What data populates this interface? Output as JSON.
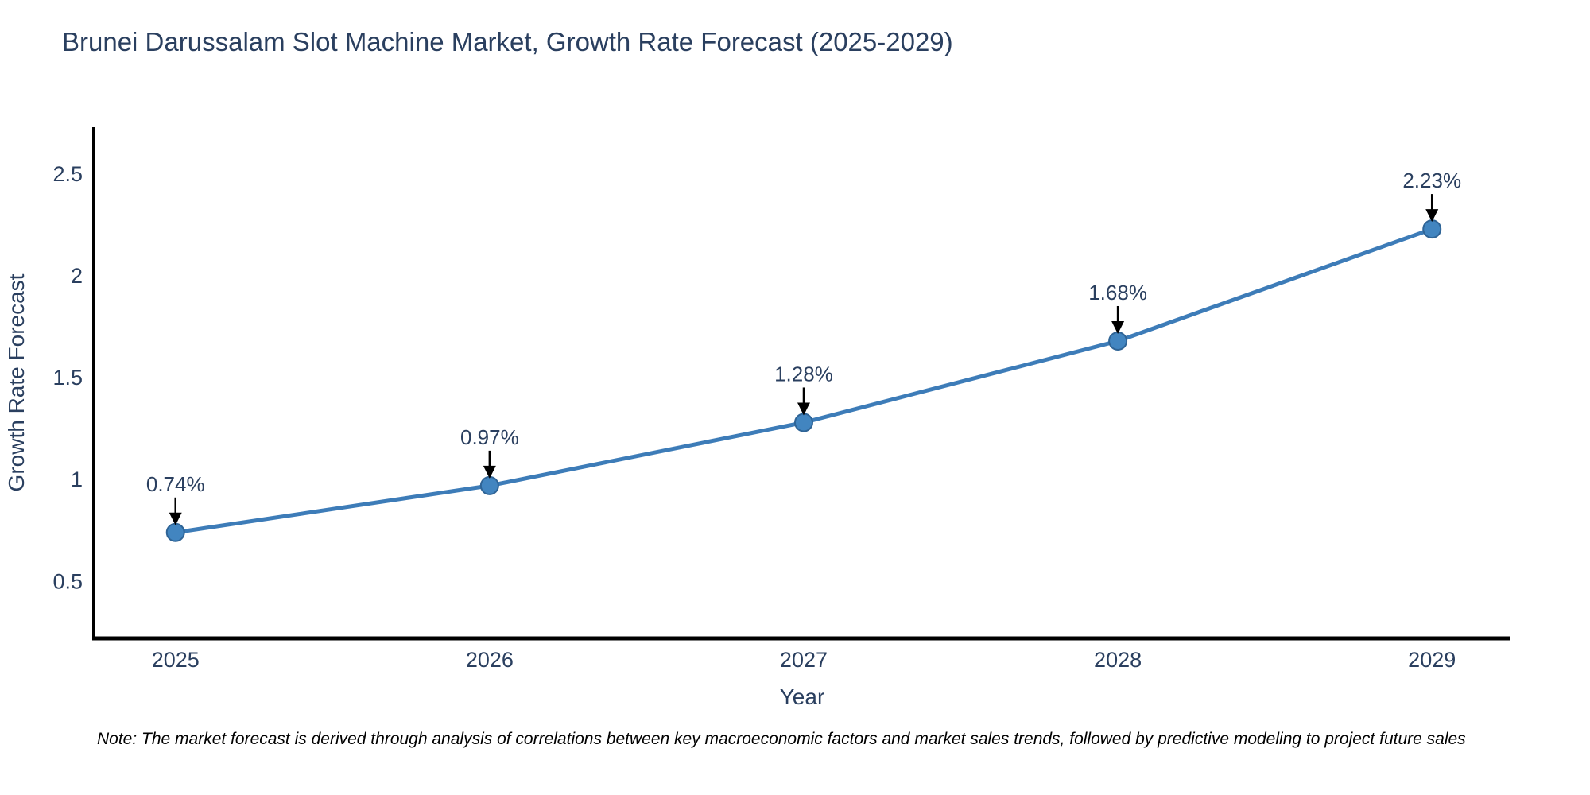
{
  "title": "Brunei Darussalam Slot Machine Market, Growth Rate Forecast (2025-2029)",
  "note": "Note: The market forecast is derived through analysis of correlations between key macroeconomic factors and market sales trends, followed by predictive modeling to project future sales",
  "colors": {
    "title": "#2a3f5f",
    "line": "#3d7cb8",
    "marker_fill": "#4285c0",
    "marker_stroke": "#2f6496",
    "axis": "#000000",
    "arrow": "#000000",
    "tick": "#2a3f5f",
    "background": "#ffffff"
  },
  "chart_data": {
    "type": "line",
    "title": "Brunei Darussalam Slot Machine Market, Growth Rate Forecast (2025-2029)",
    "x": [
      2025,
      2026,
      2027,
      2028,
      2029
    ],
    "y": [
      0.74,
      0.97,
      1.28,
      1.68,
      2.23
    ],
    "point_labels": [
      "0.74%",
      "0.97%",
      "1.28%",
      "1.68%",
      "2.23%"
    ],
    "xlabel": "Year",
    "ylabel": "Growth Rate Forecast",
    "xticklabels": [
      "2025",
      "2026",
      "2027",
      "2028",
      "2029"
    ],
    "yticks": [
      0.5,
      1,
      1.5,
      2,
      2.5
    ],
    "xlim": [
      2024.74,
      2029.25
    ],
    "ylim": [
      0.22,
      2.73
    ],
    "grid": false,
    "legend_position": "none",
    "marker_size": 11,
    "line_width": 5
  }
}
